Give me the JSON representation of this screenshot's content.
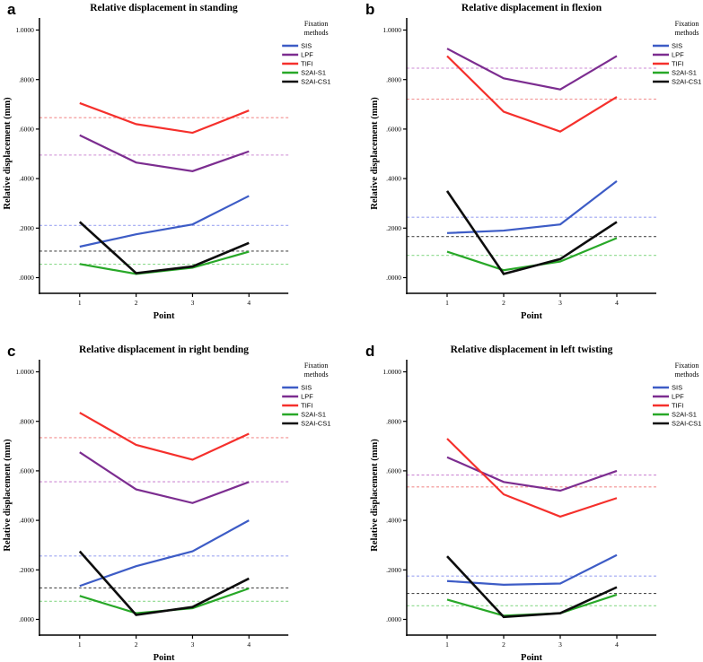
{
  "figure": {
    "background": "#ffffff",
    "text_color": "#000000",
    "legend": {
      "title_lines": [
        "Fixation",
        "methods"
      ]
    },
    "series_meta": [
      {
        "name": "SIS",
        "color": "#3d5cc6",
        "mean_color": "#9da5f2"
      },
      {
        "name": "LPF",
        "color": "#7c2d90",
        "mean_color": "#cd8ad4"
      },
      {
        "name": "TIFI",
        "color": "#f5302c",
        "mean_color": "#f28f8f"
      },
      {
        "name": "S2AI-S1",
        "color": "#28a828",
        "mean_color": "#8cda8c"
      },
      {
        "name": "S2AI-CS1",
        "color": "#0d0d0d",
        "mean_color": "#4d4d4d"
      }
    ],
    "y_axis": {
      "label": "Relative displacement (mm)",
      "ticks": [
        {
          "label": "1.0000",
          "value": 1.0
        },
        {
          "label": ".8000",
          "value": 0.8
        },
        {
          "label": ".6000",
          "value": 0.6
        },
        {
          "label": ".4000",
          "value": 0.4
        },
        {
          "label": ".2000",
          "value": 0.2
        },
        {
          "label": ".0000",
          "value": 0.0
        }
      ]
    },
    "x_axis": {
      "label": "Point",
      "ticks": [
        {
          "label": "1",
          "value": 1
        },
        {
          "label": "2",
          "value": 2
        },
        {
          "label": "3",
          "value": 3
        },
        {
          "label": "4",
          "value": 4
        }
      ]
    }
  },
  "chart_data": [
    {
      "panel_label": "a",
      "type": "line",
      "title": "Relative displacement in standing",
      "xlabel": "Point",
      "ylabel": "Relative displacement (mm)",
      "x": [
        1,
        2,
        3,
        4
      ],
      "ylim": [
        0.0,
        1.0
      ],
      "grid": false,
      "legend_position": "right",
      "series": [
        {
          "name": "SIS",
          "values": [
            0.125,
            0.175,
            0.215,
            0.33
          ],
          "mean_line": 0.211
        },
        {
          "name": "LPF",
          "values": [
            0.575,
            0.465,
            0.43,
            0.51
          ],
          "mean_line": 0.495
        },
        {
          "name": "TIFI",
          "values": [
            0.705,
            0.62,
            0.585,
            0.675
          ],
          "mean_line": 0.646
        },
        {
          "name": "S2AI-S1",
          "values": [
            0.055,
            0.015,
            0.04,
            0.105
          ],
          "mean_line": 0.054
        },
        {
          "name": "S2AI-CS1",
          "values": [
            0.225,
            0.018,
            0.045,
            0.14
          ],
          "mean_line": 0.107
        }
      ]
    },
    {
      "panel_label": "b",
      "type": "line",
      "title": "Relative displacement in flexion",
      "xlabel": "Point",
      "ylabel": "Relative displacement (mm)",
      "x": [
        1,
        2,
        3,
        4
      ],
      "ylim": [
        0.0,
        1.0
      ],
      "grid": false,
      "legend_position": "right",
      "series": [
        {
          "name": "SIS",
          "values": [
            0.18,
            0.19,
            0.215,
            0.39
          ],
          "mean_line": 0.244
        },
        {
          "name": "LPF",
          "values": [
            0.925,
            0.805,
            0.76,
            0.895
          ],
          "mean_line": 0.846
        },
        {
          "name": "TIFI",
          "values": [
            0.895,
            0.67,
            0.59,
            0.73
          ],
          "mean_line": 0.721
        },
        {
          "name": "S2AI-S1",
          "values": [
            0.105,
            0.03,
            0.065,
            0.16
          ],
          "mean_line": 0.09
        },
        {
          "name": "S2AI-CS1",
          "values": [
            0.35,
            0.015,
            0.075,
            0.225
          ],
          "mean_line": 0.166
        }
      ]
    },
    {
      "panel_label": "c",
      "type": "line",
      "title": "Relative displacement in right bending",
      "xlabel": "Point",
      "ylabel": "Relative displacement (mm)",
      "x": [
        1,
        2,
        3,
        4
      ],
      "ylim": [
        0.0,
        1.0
      ],
      "grid": false,
      "legend_position": "right",
      "series": [
        {
          "name": "SIS",
          "values": [
            0.135,
            0.215,
            0.275,
            0.4
          ],
          "mean_line": 0.256
        },
        {
          "name": "LPF",
          "values": [
            0.675,
            0.525,
            0.47,
            0.555
          ],
          "mean_line": 0.556
        },
        {
          "name": "TIFI",
          "values": [
            0.835,
            0.705,
            0.645,
            0.75
          ],
          "mean_line": 0.734
        },
        {
          "name": "S2AI-S1",
          "values": [
            0.095,
            0.025,
            0.045,
            0.125
          ],
          "mean_line": 0.073
        },
        {
          "name": "S2AI-CS1",
          "values": [
            0.275,
            0.018,
            0.05,
            0.165
          ],
          "mean_line": 0.127
        }
      ]
    },
    {
      "panel_label": "d",
      "type": "line",
      "title": "Relative displacement in left twisting",
      "xlabel": "Point",
      "ylabel": "Relative displacement (mm)",
      "x": [
        1,
        2,
        3,
        4
      ],
      "ylim": [
        0.0,
        1.0
      ],
      "grid": false,
      "legend_position": "right",
      "series": [
        {
          "name": "SIS",
          "values": [
            0.155,
            0.14,
            0.145,
            0.26
          ],
          "mean_line": 0.175
        },
        {
          "name": "LPF",
          "values": [
            0.655,
            0.555,
            0.52,
            0.6
          ],
          "mean_line": 0.583
        },
        {
          "name": "TIFI",
          "values": [
            0.73,
            0.505,
            0.415,
            0.49
          ],
          "mean_line": 0.535
        },
        {
          "name": "S2AI-S1",
          "values": [
            0.08,
            0.015,
            0.025,
            0.1
          ],
          "mean_line": 0.055
        },
        {
          "name": "S2AI-CS1",
          "values": [
            0.255,
            0.01,
            0.025,
            0.13
          ],
          "mean_line": 0.105
        }
      ]
    }
  ]
}
